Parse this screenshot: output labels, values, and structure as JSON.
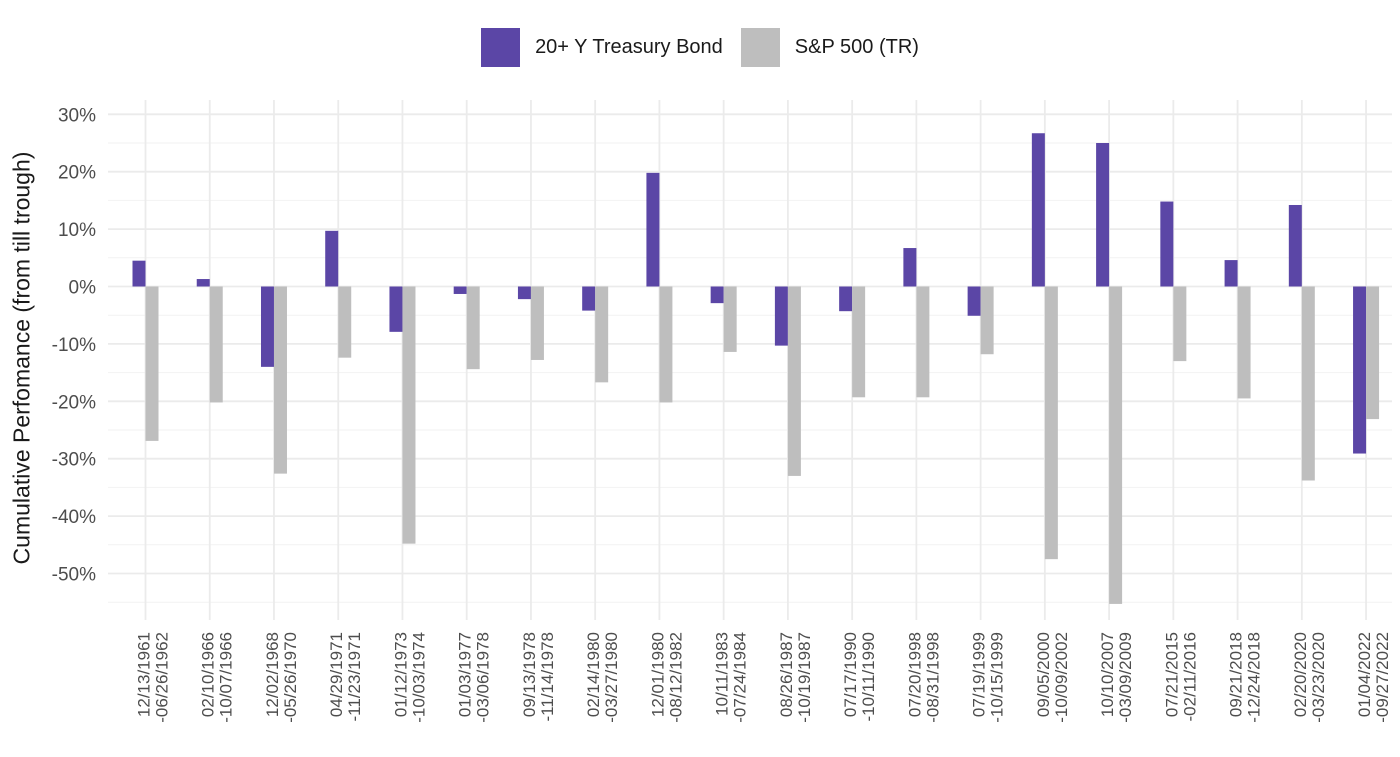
{
  "chart_data": {
    "type": "bar",
    "title": "",
    "xlabel": "",
    "ylabel": "Cumulative Perfomance (from till trough)",
    "ylim": [
      -57,
      30
    ],
    "yticks": [
      30,
      20,
      10,
      0,
      -10,
      -20,
      -30,
      -40,
      -50
    ],
    "ytick_labels": [
      "30%",
      "20%",
      "10%",
      "0%",
      "-10%",
      "-20%",
      "-30%",
      "-40%",
      "-50%"
    ],
    "legend_position": "top-center",
    "grid": true,
    "categories": [
      {
        "line1": "12/13/1961",
        "line2": "-06/26/1962"
      },
      {
        "line1": "02/10/1966",
        "line2": "-10/07/1966"
      },
      {
        "line1": "12/02/1968",
        "line2": "-05/26/1970"
      },
      {
        "line1": "04/29/1971",
        "line2": "-11/23/1971"
      },
      {
        "line1": "01/12/1973",
        "line2": "-10/03/1974"
      },
      {
        "line1": "01/03/1977",
        "line2": "-03/06/1978"
      },
      {
        "line1": "09/13/1978",
        "line2": "-11/14/1978"
      },
      {
        "line1": "02/14/1980",
        "line2": "-03/27/1980"
      },
      {
        "line1": "12/01/1980",
        "line2": "-08/12/1982"
      },
      {
        "line1": "10/11/1983",
        "line2": "-07/24/1984"
      },
      {
        "line1": "08/26/1987",
        "line2": "-10/19/1987"
      },
      {
        "line1": "07/17/1990",
        "line2": "-10/11/1990"
      },
      {
        "line1": "07/20/1998",
        "line2": "-08/31/1998"
      },
      {
        "line1": "07/19/1999",
        "line2": "-10/15/1999"
      },
      {
        "line1": "09/05/2000",
        "line2": "-10/09/2002"
      },
      {
        "line1": "10/10/2007",
        "line2": "-03/09/2009"
      },
      {
        "line1": "07/21/2015",
        "line2": "-02/11/2016"
      },
      {
        "line1": "09/21/2018",
        "line2": "-12/24/2018"
      },
      {
        "line1": "02/20/2020",
        "line2": "-03/23/2020"
      },
      {
        "line1": "01/04/2022",
        "line2": "-09/27/2022"
      }
    ],
    "series": [
      {
        "name": "20+ Y Treasury Bond",
        "color": "#5b46a6",
        "values": [
          4.5,
          1.3,
          -14.0,
          9.7,
          -7.9,
          -1.3,
          -2.2,
          -4.2,
          19.8,
          -2.9,
          -10.3,
          -4.3,
          6.7,
          -5.1,
          26.7,
          25.0,
          14.8,
          4.6,
          14.2,
          -29.1
        ]
      },
      {
        "name": "S&P 500 (TR)",
        "color": "#bebebe",
        "values": [
          -26.9,
          -20.2,
          -32.6,
          -12.4,
          -44.8,
          -14.4,
          -12.8,
          -16.7,
          -20.2,
          -11.4,
          -33.0,
          -19.3,
          -19.3,
          -11.8,
          -47.5,
          -55.3,
          -13.0,
          -19.5,
          -33.8,
          -23.1
        ]
      }
    ]
  }
}
